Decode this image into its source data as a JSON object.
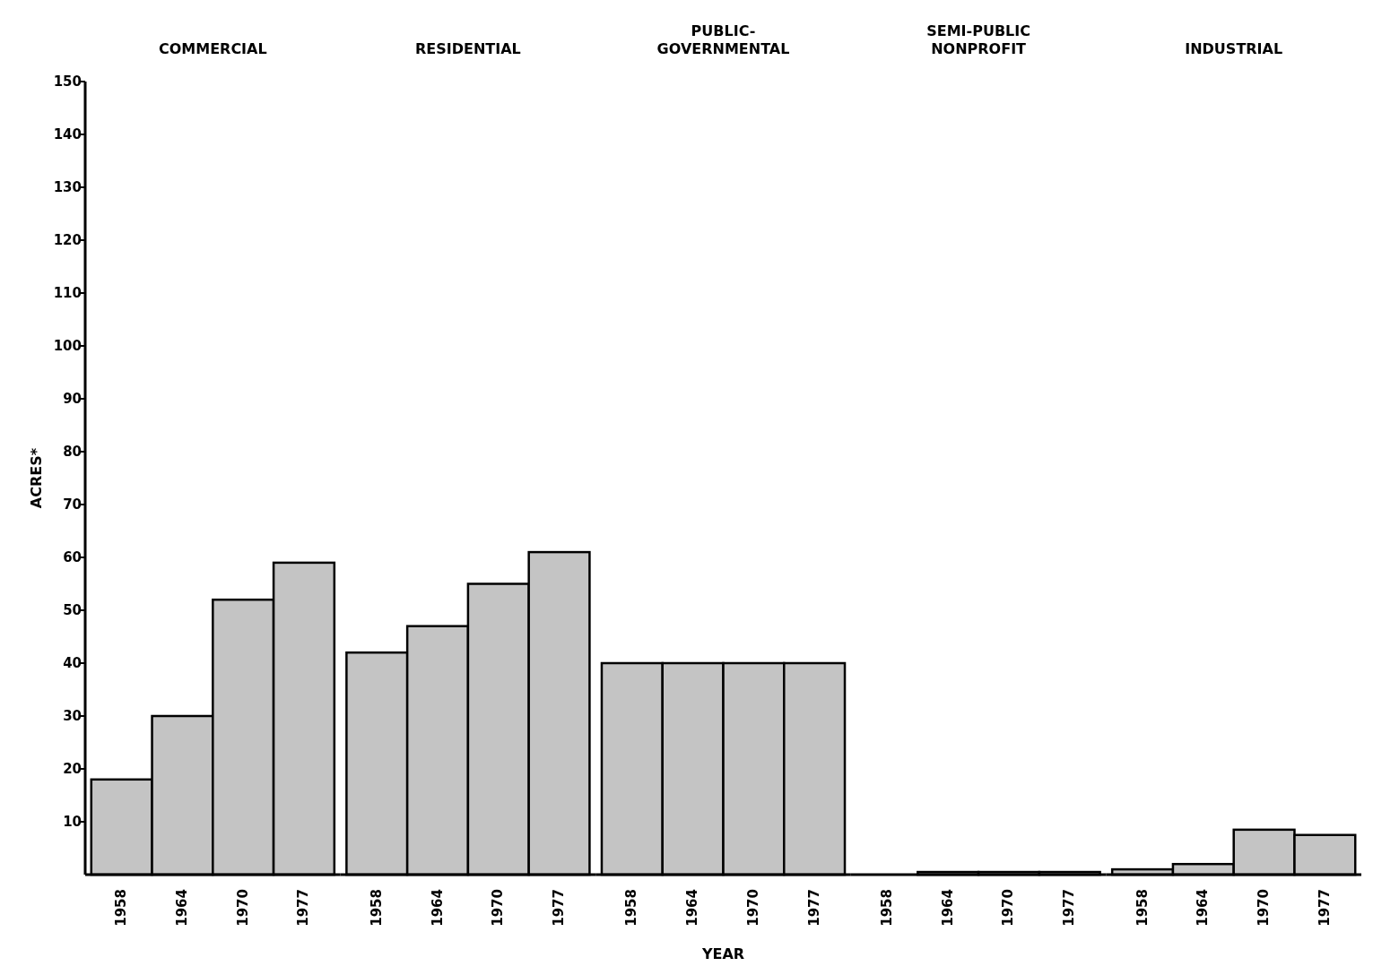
{
  "chart_data": [
    {
      "type": "bar",
      "title": "COMMERCIAL",
      "ylabel": "ACRES*",
      "categories": [
        "1958",
        "1964",
        "1970",
        "1977"
      ],
      "values": [
        18,
        30,
        52,
        59
      ],
      "color": "#c4c4c4",
      "ylim": [
        0,
        150
      ],
      "yticks": [
        10,
        20,
        30,
        40,
        50,
        60,
        70,
        80,
        90,
        100,
        110,
        120,
        130,
        140,
        150
      ]
    },
    {
      "type": "bar",
      "title": "RESIDENTIAL",
      "categories": [
        "1958",
        "1964",
        "1970",
        "1977"
      ],
      "values": [
        42,
        47,
        55,
        61
      ],
      "color": "#c4c4c4",
      "ylim": [
        0,
        150
      ],
      "tick_labels": "x"
    },
    {
      "type": "bar",
      "title": "PUBLIC-\nGOVERNMENTAL",
      "xlabel": "YEAR",
      "categories": [
        "1958",
        "1964",
        "1970",
        "1977"
      ],
      "values": [
        40,
        40,
        40,
        40
      ],
      "color": "#c4c4c4",
      "ylim": [
        0,
        150
      ],
      "tick_labels": "x"
    },
    {
      "type": "bar",
      "title": "SEMI-PUBLIC\nNONPROFIT",
      "categories": [
        "1958",
        "1964",
        "1970",
        "1977"
      ],
      "values": [
        0,
        0.5,
        0.5,
        0.5
      ],
      "color": "#c4c4c4",
      "ylim": [
        0,
        150
      ],
      "tick_labels": "x"
    },
    {
      "type": "bar",
      "title": "INDUSTRIAL",
      "categories": [
        "1958",
        "1964",
        "1970",
        "1977"
      ],
      "values": [
        1,
        2,
        8.5,
        7.5
      ],
      "color": "#c4c4c4",
      "ylim": [
        0,
        150
      ],
      "tick_labels": "x"
    }
  ]
}
